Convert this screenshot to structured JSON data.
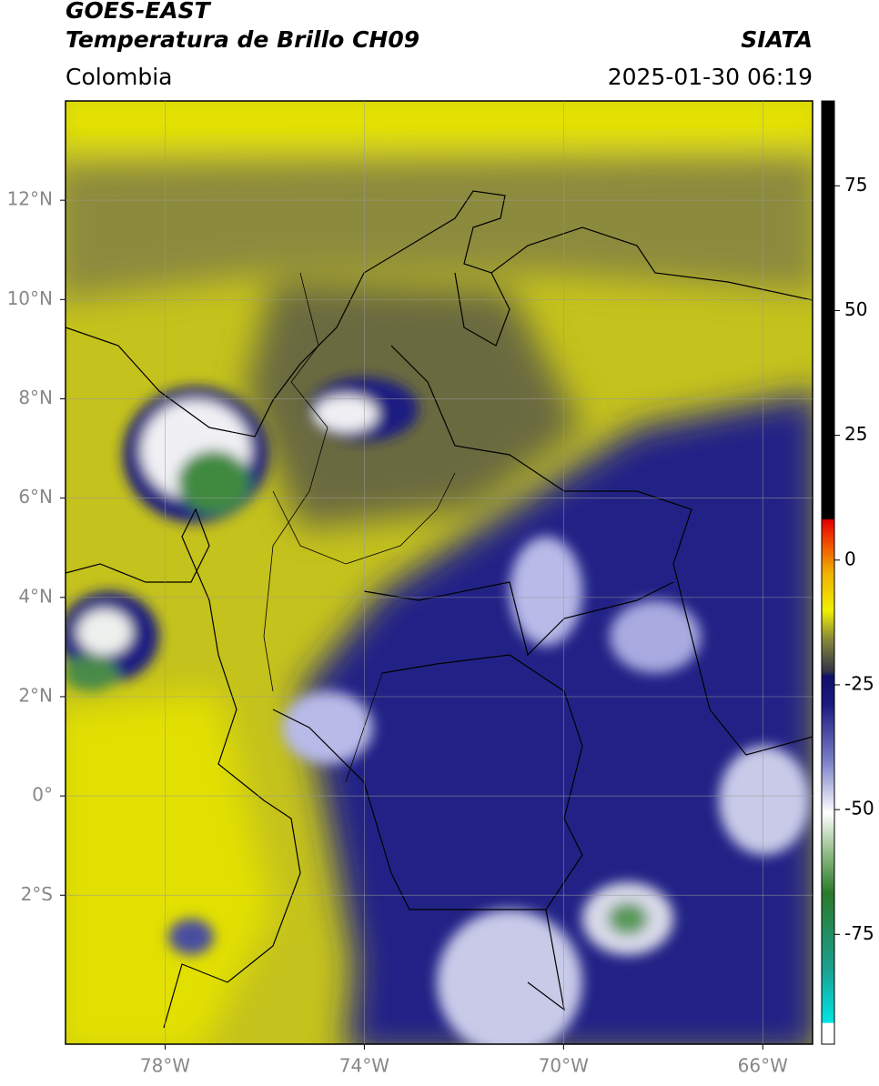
{
  "header": {
    "satellite": "GOES-EAST",
    "product": "Temperatura de Brillo CH09",
    "agency": "SIATA",
    "region": "Colombia",
    "datetime": "2025-01-30 06:19"
  },
  "map": {
    "xlim": [
      -80,
      -65
    ],
    "ylim": [
      -5,
      14
    ],
    "xticks": [
      {
        "value": -78,
        "label": "78°W"
      },
      {
        "value": -74,
        "label": "74°W"
      },
      {
        "value": -70,
        "label": "70°W"
      },
      {
        "value": -66,
        "label": "66°W"
      }
    ],
    "yticks": [
      {
        "value": 12,
        "label": "12°N"
      },
      {
        "value": 10,
        "label": "10°N"
      },
      {
        "value": 8,
        "label": "8°N"
      },
      {
        "value": 6,
        "label": "6°N"
      },
      {
        "value": 4,
        "label": "4°N"
      },
      {
        "value": 2,
        "label": "2°N"
      },
      {
        "value": 0,
        "label": "0°"
      },
      {
        "value": -2,
        "label": "2°S"
      }
    ]
  },
  "colorbar": {
    "lim": [
      -97,
      92
    ],
    "ticks": [
      75,
      50,
      25,
      0,
      -25,
      -50,
      -75
    ]
  }
}
